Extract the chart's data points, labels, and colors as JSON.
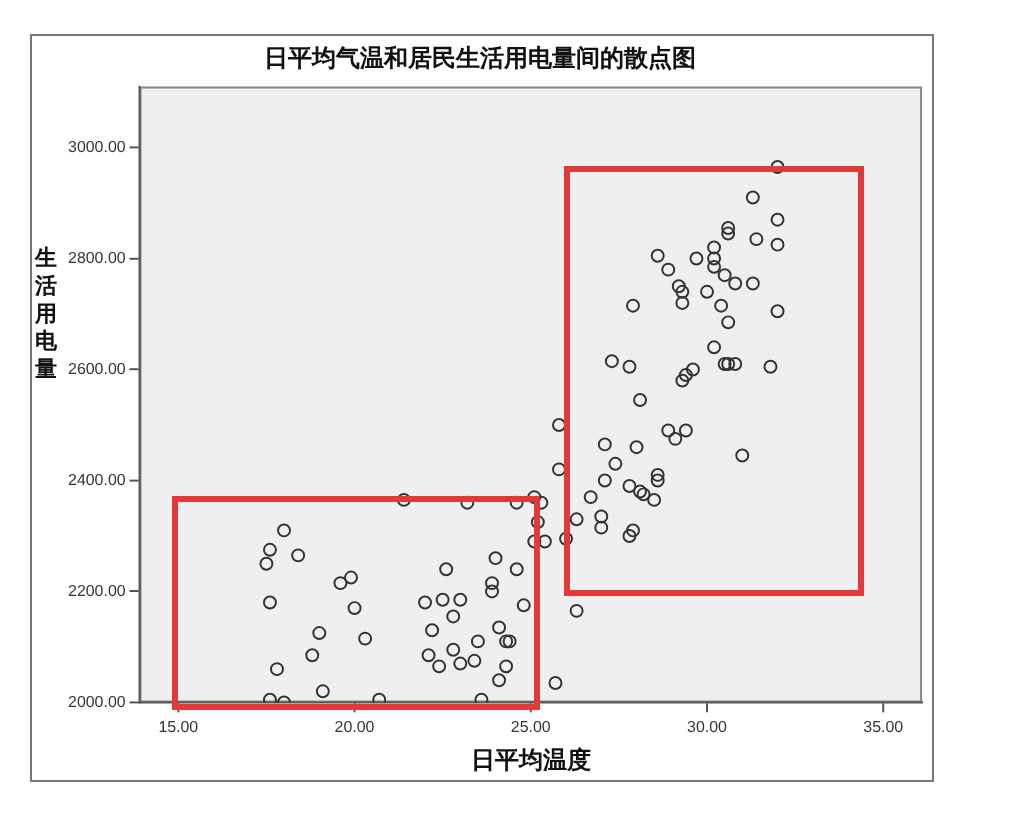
{
  "chart_data": {
    "type": "scatter",
    "title": "日平均气温和居民生活用电量间的散点图",
    "xlabel": "日平均温度",
    "ylabel": "生活用电量",
    "xlim": [
      13.9,
      36.1
    ],
    "ylim": [
      2000,
      3110
    ],
    "xticks": [
      {
        "value": 15,
        "label": "15.00"
      },
      {
        "value": 20,
        "label": "20.00"
      },
      {
        "value": 25,
        "label": "25.00"
      },
      {
        "value": 30,
        "label": "30.00"
      },
      {
        "value": 35,
        "label": "35.00"
      }
    ],
    "yticks": [
      {
        "value": 2000,
        "label": "2000.00"
      },
      {
        "value": 2200,
        "label": "2200.00"
      },
      {
        "value": 2400,
        "label": "2400.00"
      },
      {
        "value": 2600,
        "label": "2600.00"
      },
      {
        "value": 2800,
        "label": "2800.00"
      },
      {
        "value": 3000,
        "label": "3000.00"
      }
    ],
    "grid": false,
    "legend": false,
    "marker": "circle",
    "series": [
      {
        "color": "#333333",
        "x": [
          21.4,
          23.2,
          24.6,
          25.1,
          25.3,
          25.2,
          25.1,
          25.4,
          18.0,
          17.6,
          17.5,
          18.4,
          19.6,
          19.9,
          17.6,
          20.0,
          19.0,
          20.3,
          18.8,
          17.8,
          17.6,
          18.0,
          19.1,
          20.7,
          23.6,
          22.6,
          22.0,
          22.5,
          23.0,
          22.8,
          22.2,
          23.9,
          23.9,
          24.0,
          24.6,
          24.8,
          24.1,
          23.5,
          24.3,
          24.4,
          22.8,
          22.1,
          22.4,
          23.0,
          23.4,
          24.3,
          24.1,
          25.7,
          32.0,
          31.3,
          32.0,
          30.6,
          30.6,
          31.4,
          32.0,
          30.2,
          28.6,
          29.7,
          30.2,
          30.2,
          28.9,
          30.5,
          30.8,
          31.3,
          29.2,
          29.3,
          30.0,
          27.9,
          29.3,
          30.4,
          32.0,
          30.6,
          30.2,
          27.3,
          27.8,
          30.5,
          30.6,
          30.8,
          31.8,
          29.6,
          29.4,
          29.3,
          28.1,
          25.8,
          28.9,
          29.4,
          29.1,
          27.1,
          28.0,
          31.0,
          27.4,
          25.8,
          27.1,
          28.6,
          28.6,
          27.8,
          28.1,
          28.2,
          28.5,
          26.7,
          26.3,
          27.0,
          27.0,
          27.8,
          27.9,
          26.0,
          26.3
        ],
        "values": [
          2365,
          2360,
          2360,
          2370,
          2360,
          2325,
          2290,
          2290,
          2310,
          2275,
          2250,
          2265,
          2215,
          2225,
          2180,
          2170,
          2125,
          2115,
          2085,
          2060,
          2005,
          2000,
          2020,
          2005,
          2005,
          2240,
          2180,
          2185,
          2185,
          2155,
          2130,
          2215,
          2200,
          2260,
          2240,
          2175,
          2135,
          2110,
          2110,
          2110,
          2095,
          2085,
          2065,
          2070,
          2075,
          2065,
          2040,
          2035,
          2965,
          2910,
          2870,
          2855,
          2845,
          2835,
          2825,
          2820,
          2805,
          2800,
          2800,
          2785,
          2780,
          2770,
          2755,
          2755,
          2750,
          2740,
          2740,
          2715,
          2720,
          2715,
          2705,
          2685,
          2640,
          2615,
          2605,
          2610,
          2610,
          2610,
          2605,
          2600,
          2590,
          2580,
          2545,
          2500,
          2490,
          2490,
          2475,
          2465,
          2460,
          2445,
          2430,
          2420,
          2400,
          2410,
          2400,
          2390,
          2380,
          2375,
          2365,
          2370,
          2330,
          2335,
          2315,
          2300,
          2310,
          2295,
          2165
        ]
      }
    ]
  }
}
